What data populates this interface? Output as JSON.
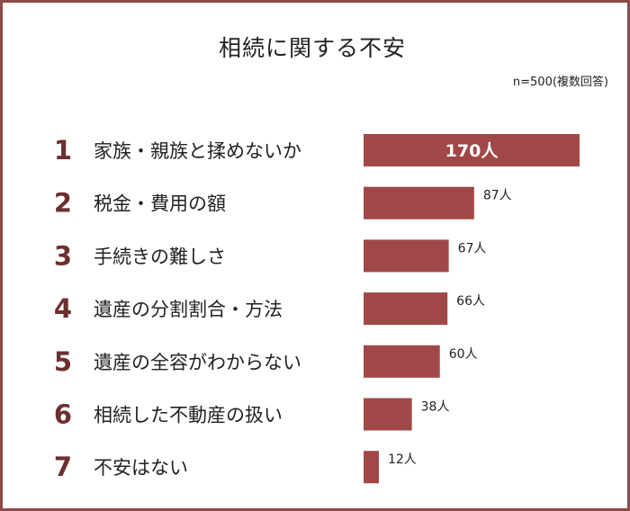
{
  "header": {
    "title": "相続に関する不安",
    "note": "n=500(複数回答)"
  },
  "colors": {
    "bar": "#a04848",
    "rank": "#6b2f2f",
    "frame": "#8c4a4a",
    "text": "#222222"
  },
  "chart_data": {
    "type": "bar",
    "orientation": "horizontal",
    "title": "相続に関する不安",
    "subtitle": "n=500(複数回答)",
    "ranks": [
      "1",
      "2",
      "3",
      "4",
      "5",
      "6",
      "7"
    ],
    "categories": [
      "家族・親族と揉めないか",
      "税金・費用の額",
      "手続きの難しさ",
      "遺産の分割割合・方法",
      "遺産の全容がわからない",
      "相続した不動産の扱い",
      "不安はない"
    ],
    "values": [
      170,
      87,
      67,
      66,
      60,
      38,
      12
    ],
    "value_labels": [
      "170人",
      "87人",
      "67人",
      "66人",
      "60人",
      "38人",
      "12人"
    ],
    "unit": "人",
    "xlim": [
      0,
      170
    ],
    "grid": false,
    "legend": "none"
  }
}
